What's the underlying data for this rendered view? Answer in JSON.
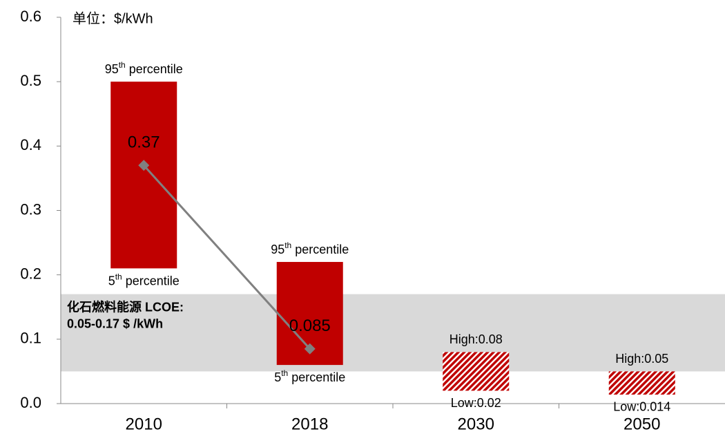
{
  "chart_data": {
    "type": "floating_bar",
    "unit_label": "单位：$/kWh",
    "categories": [
      "2010",
      "2018",
      "2030",
      "2050"
    ],
    "low": [
      0.21,
      0.06,
      0.02,
      0.014
    ],
    "high": [
      0.5,
      0.22,
      0.08,
      0.05
    ],
    "style": [
      "solid",
      "solid",
      "hatched",
      "hatched"
    ],
    "color": "#c00000",
    "high_labels": [
      "95th percentile",
      "95th percentile",
      "High:0.08",
      "High:0.05"
    ],
    "low_labels": [
      "5th percentile",
      "5th percentile",
      "Low:0.02",
      "Low:0.014"
    ],
    "mean": [
      0.37,
      0.085,
      null,
      null
    ],
    "mean_color": "#808080",
    "band": {
      "low": 0.05,
      "high": 0.17,
      "color": "#d9d9d9",
      "label": [
        "化石燃料能源 LCOE:",
        "0.05-0.17 $ /kWh"
      ]
    },
    "ylim": [
      0,
      0.6
    ],
    "yticks": [
      {
        "value": 0,
        "label": "0.0"
      },
      0.1,
      0.2,
      0.3,
      0.4,
      0.5,
      0.6
    ]
  }
}
